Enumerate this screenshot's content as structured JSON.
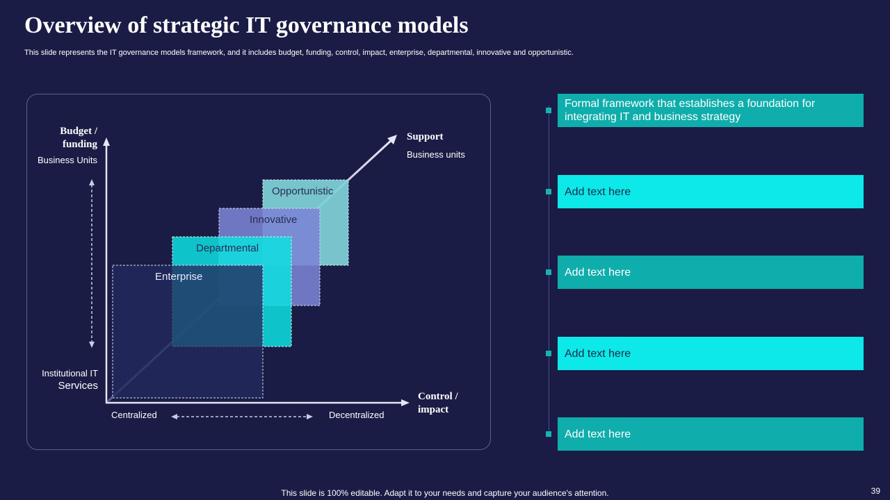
{
  "header": {
    "title": "Overview of strategic IT governance models",
    "subtitle": "This slide represents the IT governance models framework, and it includes budget, funding, control, impact, enterprise, departmental, innovative and opportunistic."
  },
  "diagram": {
    "y_axis": {
      "title_line1": "Budget /",
      "title_line2": "funding",
      "top_label": "Business Units",
      "bottom_label_line1": "Institutional IT",
      "bottom_label_line2": "Services"
    },
    "x_axis": {
      "title_line1": "Control /",
      "title_line2": "impact",
      "left_label": "Centralized",
      "right_label": "Decentralized"
    },
    "diagonal": {
      "title": "Support",
      "label": "Business units"
    },
    "models": [
      "Enterprise",
      "Departmental",
      "Innovative",
      "Opportunistic"
    ]
  },
  "panel": {
    "items": [
      "Formal framework that establishes a foundation for integrating IT and business strategy",
      "Add text here",
      "Add text here",
      "Add text here",
      "Add text here"
    ]
  },
  "footer": {
    "note": "This slide is 100% editable. Adapt it to your needs and capture your audience's attention.",
    "page": "39"
  },
  "colors": {
    "background": "#1a1c45",
    "teal": "#0fadab",
    "cyan": "#0de8e8",
    "periwinkle": "#7b84d4",
    "navy_box": "#222a5e"
  }
}
